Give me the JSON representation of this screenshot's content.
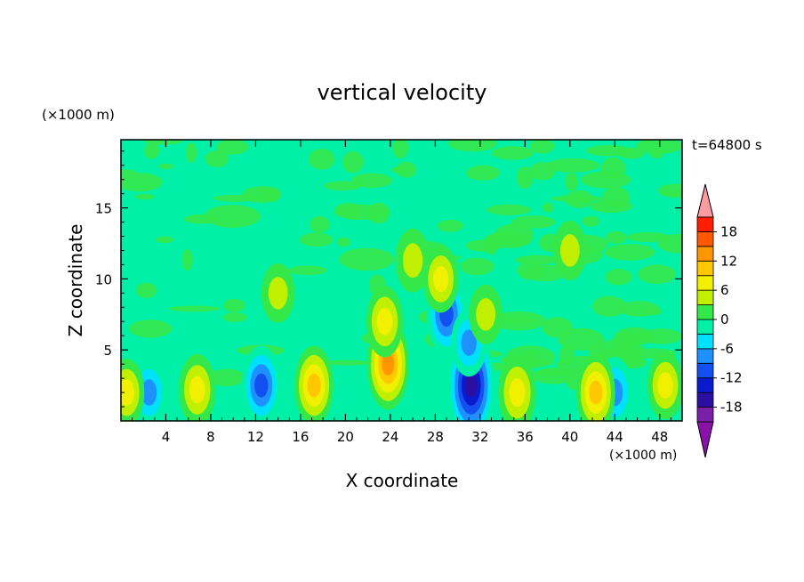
{
  "chart_data": {
    "type": "heatmap",
    "title": "vertical velocity",
    "xlabel": "X coordinate",
    "ylabel": "Z coordinate",
    "x_unit": "(×1000 m)",
    "y_unit": "(×1000 m)",
    "time_label": "t=64800 s",
    "xlim": [
      0,
      50
    ],
    "ylim": [
      0,
      19.8
    ],
    "x_ticks": [
      4,
      8,
      12,
      16,
      20,
      24,
      28,
      32,
      36,
      40,
      44,
      48
    ],
    "y_ticks": [
      5,
      10,
      15
    ],
    "grid": false,
    "colorbar": {
      "levels": [
        -21,
        -18,
        -15,
        -12,
        -9,
        -6,
        -3,
        0,
        3,
        6,
        9,
        12,
        15,
        18,
        21
      ],
      "tick_labels": [
        "18",
        "12",
        "6",
        "0",
        "-6",
        "-12",
        "-18"
      ],
      "tick_values": [
        18,
        12,
        6,
        0,
        -6,
        -12,
        -18
      ],
      "colors": [
        "#7a1fa8",
        "#2a0fa0",
        "#0a1acd",
        "#1450f0",
        "#1e90ff",
        "#00e0ff",
        "#00f0a8",
        "#35e84a",
        "#c0f000",
        "#f0f000",
        "#ffc800",
        "#ff9600",
        "#ff5a00",
        "#ff1e00"
      ],
      "over_color": "#ff9aa0",
      "under_color": "#8a12a8"
    },
    "features": [
      {
        "x": 31.2,
        "z": 2.5,
        "value": -16
      },
      {
        "x": 29.0,
        "z": 7.5,
        "value": -9
      },
      {
        "x": 12.5,
        "z": 2.5,
        "value": -8
      },
      {
        "x": 44.0,
        "z": 2.0,
        "value": -6
      },
      {
        "x": 2.5,
        "z": 2.0,
        "value": -5
      },
      {
        "x": 31.0,
        "z": 5.5,
        "value": -5
      },
      {
        "x": 23.8,
        "z": 4.0,
        "value": 11
      },
      {
        "x": 23.5,
        "z": 7.0,
        "value": 6
      },
      {
        "x": 17.2,
        "z": 2.5,
        "value": 8
      },
      {
        "x": 6.8,
        "z": 2.2,
        "value": 6
      },
      {
        "x": 42.3,
        "z": 2.0,
        "value": 8
      },
      {
        "x": 35.3,
        "z": 2.0,
        "value": 7
      },
      {
        "x": 48.5,
        "z": 2.5,
        "value": 5
      },
      {
        "x": 0.5,
        "z": 2.0,
        "value": 5
      },
      {
        "x": 28.5,
        "z": 10.0,
        "value": 5
      },
      {
        "x": 26.0,
        "z": 11.3,
        "value": 4
      },
      {
        "x": 14.0,
        "z": 9.0,
        "value": 3
      },
      {
        "x": 40.0,
        "z": 12.0,
        "value": 3
      },
      {
        "x": 32.5,
        "z": 7.5,
        "value": 3
      }
    ]
  }
}
